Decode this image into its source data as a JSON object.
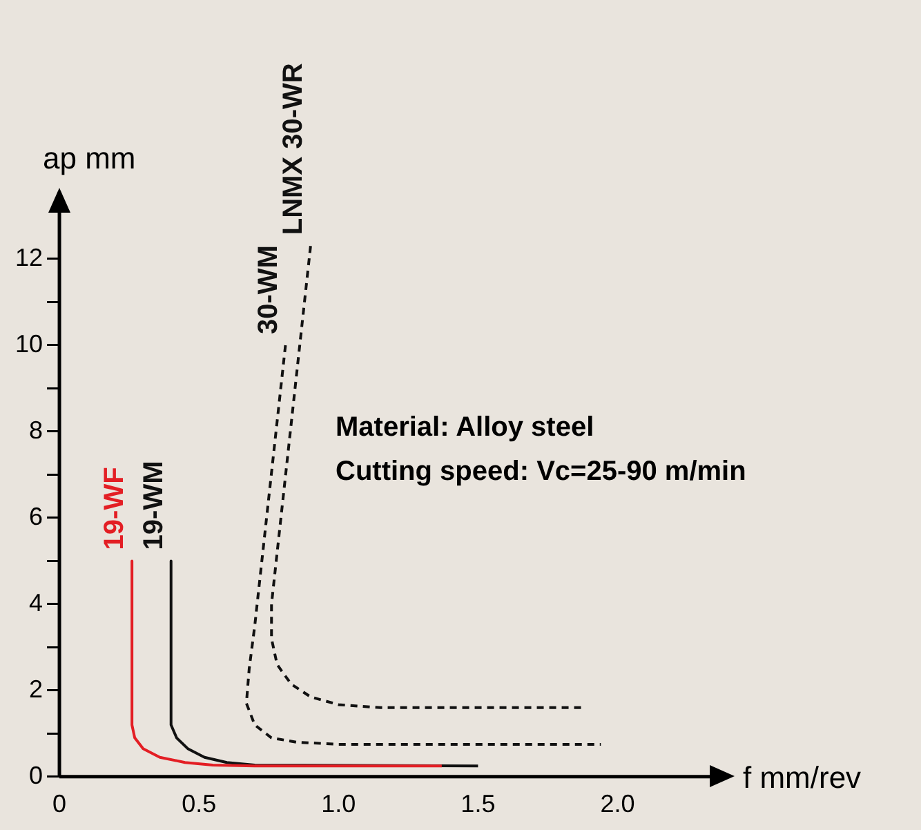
{
  "chart_data": {
    "type": "line",
    "xlabel": "f mm/rev",
    "ylabel": "ap mm",
    "xlim": [
      0,
      2.35
    ],
    "ylim": [
      0,
      13.2
    ],
    "xticks": [
      0,
      0.5,
      {
        "value": 1,
        "label": "1.0"
      },
      1.5,
      {
        "value": 2,
        "label": "2.0"
      }
    ],
    "yticks": [
      0,
      {
        "value": 1,
        "label": null
      },
      2,
      {
        "value": 3,
        "label": null
      },
      4,
      {
        "value": 5,
        "label": null
      },
      6,
      {
        "value": 7,
        "label": null
      },
      8,
      {
        "value": 9,
        "label": null
      },
      10,
      {
        "value": 11,
        "label": null
      },
      12
    ],
    "grid": false,
    "legend": false,
    "marker": "none",
    "series": [
      {
        "name": "19-WF",
        "color": "#e31e24",
        "line_style": "solid",
        "x": [
          0.26,
          0.26,
          0.27,
          0.3,
          0.36,
          0.45,
          0.55,
          0.7,
          1.37
        ],
        "values": [
          5,
          1.2,
          0.9,
          0.65,
          0.45,
          0.33,
          0.27,
          0.25,
          0.25
        ]
      },
      {
        "name": "19-WM",
        "color": "#111111",
        "line_style": "solid",
        "x": [
          0.4,
          0.4,
          0.42,
          0.46,
          0.52,
          0.6,
          0.7,
          1.5
        ],
        "values": [
          5,
          1.2,
          0.9,
          0.65,
          0.45,
          0.33,
          0.27,
          0.25
        ]
      },
      {
        "name": "30-WM",
        "color": "#111111",
        "line_style": "dashed",
        "x": [
          0.81,
          0.7,
          0.68,
          0.67,
          0.7,
          0.76,
          0.85,
          1.0,
          1.94
        ],
        "values": [
          10,
          3.5,
          2.5,
          1.7,
          1.2,
          0.9,
          0.8,
          0.75,
          0.75
        ]
      },
      {
        "name": "LNMX 30-WR",
        "color": "#111111",
        "line_style": "dashed",
        "x": [
          0.9,
          0.76,
          0.76,
          0.78,
          0.83,
          0.9,
          1.0,
          1.15,
          1.88
        ],
        "values": [
          12.3,
          4,
          3.2,
          2.6,
          2.15,
          1.85,
          1.67,
          1.6,
          1.6
        ]
      }
    ],
    "annotations": [
      "Material: Alloy steel",
      "Cutting speed: Vc=25-90 m/min"
    ]
  }
}
